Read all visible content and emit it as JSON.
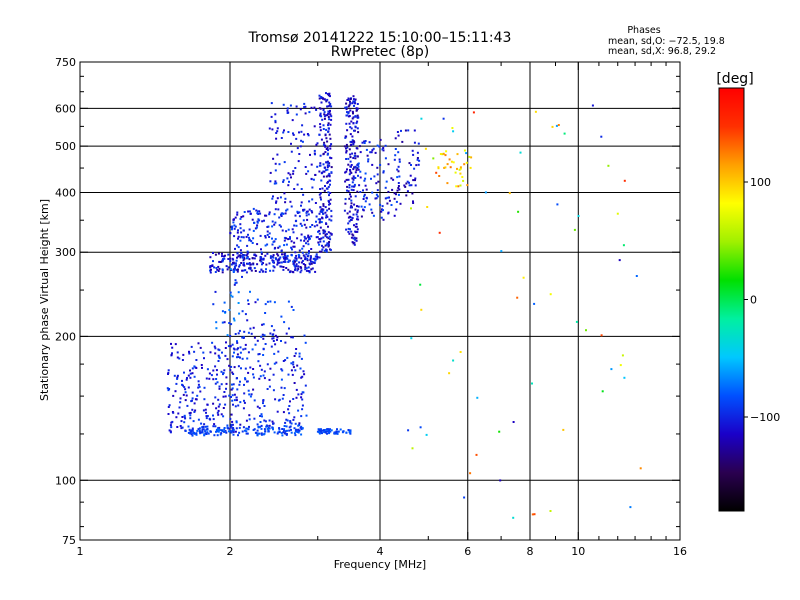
{
  "chart_data": {
    "type": "scatter",
    "title": "Tromsø 20141222 15:10:00–15:11:43",
    "subtitle": "RwPretec (8p)",
    "xlabel": "Frequency [MHz]",
    "ylabel": "Stationary phase Virtual Height [km]",
    "x_scale": "log",
    "y_scale": "log",
    "xlim": [
      1,
      16
    ],
    "ylim": [
      75,
      750
    ],
    "x_ticks": [
      1,
      2,
      4,
      6,
      8,
      10,
      16
    ],
    "x_tick_labels": [
      "1",
      "2",
      "4",
      "6",
      "8",
      "10",
      "16"
    ],
    "x_minor_ticks": [
      3,
      5,
      7,
      9,
      11,
      12,
      13,
      14,
      15
    ],
    "y_ticks": [
      75,
      100,
      200,
      300,
      400,
      500,
      600,
      750
    ],
    "y_tick_labels": [
      "75",
      "100",
      "200",
      "300",
      "400",
      "500",
      "600",
      "750"
    ],
    "y_minor_ticks": [
      80,
      90,
      125,
      150,
      175,
      250,
      350,
      450,
      550,
      650,
      700
    ],
    "grid_x": [
      2,
      4,
      6,
      8,
      10
    ],
    "grid_y": [
      100,
      200,
      300,
      400,
      500,
      600
    ],
    "stats_box": {
      "title": "Phases",
      "line1": "mean, sd,O: −72.5, 19.8",
      "line2": "mean, sd,X:  96.8, 29.2"
    },
    "colorbar": {
      "label": "[deg]",
      "range": [
        -180,
        180
      ],
      "ticks": [
        100,
        0,
        -100
      ],
      "tick_labels": [
        "100",
        "0",
        "−100"
      ],
      "stops": [
        "#000000",
        "#2a0050",
        "#1a00c8",
        "#0050ff",
        "#00c8ff",
        "#00f0a0",
        "#00e000",
        "#a0f000",
        "#ffff00",
        "#ffa000",
        "#ff3000",
        "#ff0000"
      ]
    },
    "clusters": [
      {
        "f": [
          1.82,
          3.0
        ],
        "h": [
          272,
          300
        ],
        "n": 260,
        "phase": [
          -130,
          -85
        ]
      },
      {
        "f": [
          2.0,
          3.1
        ],
        "h": [
          290,
          370
        ],
        "n": 220,
        "phase": [
          -120,
          -80
        ]
      },
      {
        "f": [
          2.4,
          3.0
        ],
        "h": [
          360,
          620
        ],
        "n": 120,
        "phase": [
          -120,
          -85
        ]
      },
      {
        "f": [
          3.02,
          3.2
        ],
        "h": [
          300,
          650
        ],
        "n": 220,
        "phase": [
          -130,
          -90
        ]
      },
      {
        "f": [
          3.4,
          3.62
        ],
        "h": [
          310,
          640
        ],
        "n": 200,
        "phase": [
          -130,
          -90
        ]
      },
      {
        "f": [
          3.6,
          4.4
        ],
        "h": [
          350,
          520
        ],
        "n": 110,
        "phase": [
          -130,
          -80
        ]
      },
      {
        "f": [
          4.3,
          4.8
        ],
        "h": [
          380,
          540
        ],
        "n": 45,
        "phase": [
          -130,
          -90
        ]
      },
      {
        "f": [
          5.2,
          6.1
        ],
        "h": [
          410,
          490
        ],
        "n": 35,
        "phase": [
          60,
          130
        ]
      },
      {
        "f": [
          1.5,
          2.1
        ],
        "h": [
          125,
          195
        ],
        "n": 230,
        "phase": [
          -120,
          -85
        ]
      },
      {
        "f": [
          2.0,
          2.85
        ],
        "h": [
          128,
          205
        ],
        "n": 200,
        "phase": [
          -120,
          -80
        ]
      },
      {
        "f": [
          1.65,
          2.8
        ],
        "h": [
          124,
          130
        ],
        "n": 160,
        "phase": [
          -100,
          -75
        ]
      },
      {
        "f": [
          3.0,
          3.5
        ],
        "h": [
          125,
          128
        ],
        "n": 60,
        "phase": [
          -95,
          -75
        ]
      },
      {
        "f": [
          1.85,
          2.2
        ],
        "h": [
          200,
          285
        ],
        "n": 40,
        "phase": [
          -110,
          -60
        ]
      },
      {
        "f": [
          2.2,
          2.7
        ],
        "h": [
          190,
          240
        ],
        "n": 25,
        "phase": [
          -120,
          -80
        ]
      },
      {
        "f": [
          4.5,
          13.5
        ],
        "h": [
          80,
          620
        ],
        "n": 70,
        "phase": [
          -120,
          160
        ]
      }
    ]
  }
}
